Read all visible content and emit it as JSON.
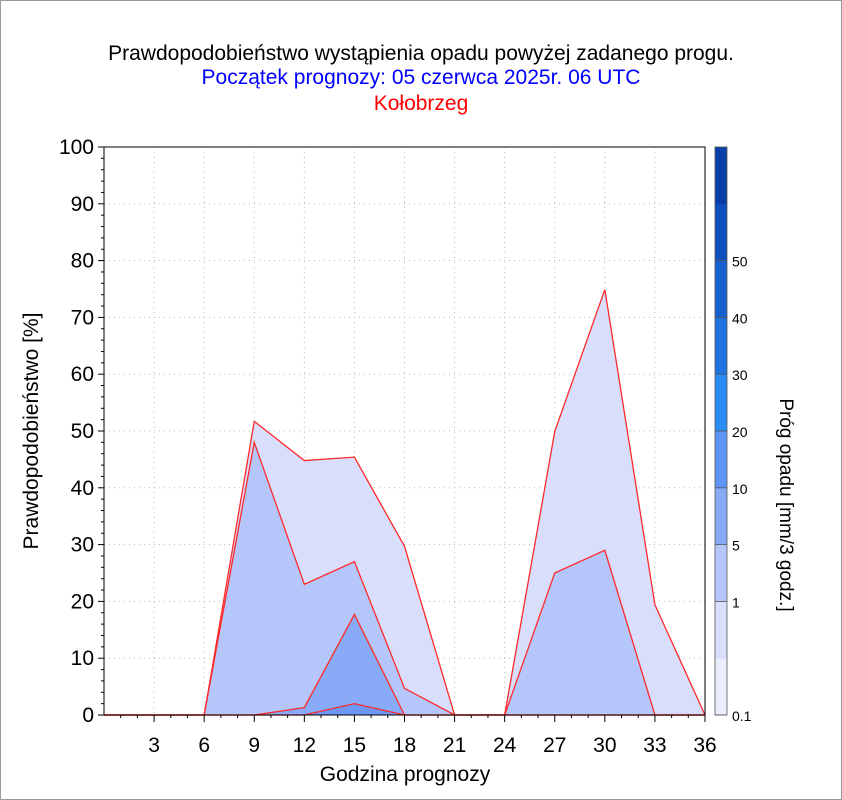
{
  "titles": {
    "line1": "Prawdopodobieństwo wystąpienia opadu powyżej zadanego progu.",
    "line2": "Początek prognozy: 05 czerwca 2025r. 06 UTC",
    "line3": "Kołobrzeg"
  },
  "colors": {
    "title_main": "#000000",
    "title_date": "#0000ff",
    "title_place": "#ff0000",
    "series_line": "#ff2a2a",
    "fills": [
      "#d9defc",
      "#b5c6fa",
      "#88aaf7",
      "#6f97f5"
    ]
  },
  "chart_data": {
    "type": "area",
    "xlabel": "Godzina prognozy",
    "ylabel": "Prawdopodobieństwo [%]",
    "colorbar_label": "Próg opadu [mm/3 godz.]",
    "x": [
      0,
      3,
      6,
      9,
      12,
      15,
      18,
      21,
      24,
      27,
      30,
      33,
      36
    ],
    "xticks": [
      3,
      6,
      9,
      12,
      15,
      18,
      21,
      24,
      27,
      30,
      33,
      36
    ],
    "xlim": [
      0,
      36
    ],
    "ylim": [
      0,
      100
    ],
    "yticks": [
      0,
      10,
      20,
      30,
      40,
      50,
      60,
      70,
      80,
      90,
      100
    ],
    "grid": true,
    "series": [
      {
        "threshold": 0.1,
        "values": [
          0,
          0,
          0,
          51.7,
          44.8,
          45.4,
          29.7,
          0,
          0,
          49.9,
          74.9,
          19.4,
          0
        ]
      },
      {
        "threshold": 1,
        "values": [
          0,
          0,
          0,
          48.0,
          23.0,
          27.0,
          4.7,
          0,
          0,
          25.0,
          29.0,
          0,
          0
        ]
      },
      {
        "threshold": 5,
        "values": [
          0,
          0,
          0,
          0,
          1.3,
          17.7,
          0,
          0,
          0,
          0,
          0,
          0,
          0
        ]
      },
      {
        "threshold": 10,
        "values": [
          0,
          0,
          0,
          0,
          0,
          2.0,
          0,
          0,
          0,
          0,
          0,
          0,
          0
        ]
      }
    ],
    "colorbar": {
      "levels": [
        "0.1",
        "1",
        "5",
        "10",
        "20",
        "30",
        "40",
        "50"
      ],
      "colors": [
        "#ebeefd",
        "#d9defc",
        "#b5c6fa",
        "#88aaf7",
        "#5f95f7",
        "#2a8cf5",
        "#1f73e0",
        "#1660d0",
        "#0f4fbf",
        "#0a3ea8"
      ]
    }
  }
}
